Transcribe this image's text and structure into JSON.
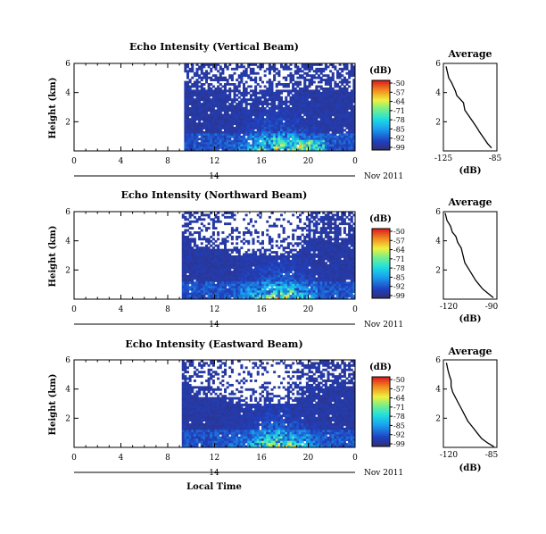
{
  "chart_data": [
    {
      "type": "heatmap",
      "title": "Echo Intensity (Vertical Beam)",
      "ylabel": "Height (km)",
      "xlim": [
        0,
        24
      ],
      "ylim": [
        0,
        6
      ],
      "x_ticks": [
        "0",
        "4",
        "8",
        "12",
        "16",
        "20",
        "0"
      ],
      "y_ticks": [
        "2",
        "4",
        "6"
      ],
      "date_day": "14",
      "date_month": "Nov 2011",
      "data_start_hour": 9.4,
      "colorbar": {
        "label": "(dB)",
        "ticks": [
          "-50",
          "-57",
          "-64",
          "-71",
          "-78",
          "-85",
          "-92",
          "-99"
        ],
        "min": -99,
        "max": -50
      },
      "profile": {
        "title": "Average",
        "xlabel": "(dB)",
        "x_ticks": [
          "-125",
          "-85"
        ],
        "xlim": [
          -125,
          -85
        ],
        "y_ticks": [
          "2",
          "4",
          "6"
        ],
        "points": [
          [
            -123,
            5.8
          ],
          [
            -122,
            5.4
          ],
          [
            -121,
            5.0
          ],
          [
            -119,
            4.7
          ],
          [
            -118,
            4.5
          ],
          [
            -116,
            4.1
          ],
          [
            -115,
            3.8
          ],
          [
            -112,
            3.5
          ],
          [
            -110,
            3.3
          ],
          [
            -109,
            2.8
          ],
          [
            -106,
            2.4
          ],
          [
            -103,
            2.0
          ],
          [
            -100,
            1.6
          ],
          [
            -98,
            1.3
          ],
          [
            -95,
            0.9
          ],
          [
            -92,
            0.5
          ],
          [
            -89,
            0.2
          ]
        ]
      }
    },
    {
      "type": "heatmap",
      "title": "Echo Intensity (Northward Beam)",
      "ylabel": "Height (km)",
      "xlim": [
        0,
        24
      ],
      "ylim": [
        0,
        6
      ],
      "x_ticks": [
        "0",
        "4",
        "8",
        "12",
        "16",
        "20",
        "0"
      ],
      "y_ticks": [
        "2",
        "4",
        "6"
      ],
      "date_day": "14",
      "date_month": "Nov 2011",
      "data_start_hour": 9.2,
      "colorbar": {
        "label": "(dB)",
        "ticks": [
          "-50",
          "-57",
          "-64",
          "-71",
          "-78",
          "-85",
          "-92",
          "-99"
        ],
        "min": -99,
        "max": -50
      },
      "profile": {
        "title": "Average",
        "xlabel": "(dB)",
        "x_ticks": [
          "-120",
          "-90"
        ],
        "xlim": [
          -120,
          -90
        ],
        "y_ticks": [
          "2",
          "4",
          "6"
        ],
        "points": [
          [
            -119,
            5.9
          ],
          [
            -118,
            5.4
          ],
          [
            -116,
            5.0
          ],
          [
            -115,
            4.6
          ],
          [
            -113,
            4.3
          ],
          [
            -112,
            3.9
          ],
          [
            -110,
            3.5
          ],
          [
            -109,
            3.0
          ],
          [
            -108,
            2.5
          ],
          [
            -106,
            2.1
          ],
          [
            -104,
            1.7
          ],
          [
            -102,
            1.3
          ],
          [
            -100,
            1.0
          ],
          [
            -98,
            0.7
          ],
          [
            -95,
            0.4
          ],
          [
            -92,
            0.1
          ]
        ]
      }
    },
    {
      "type": "heatmap",
      "title": "Echo Intensity (Eastward Beam)",
      "ylabel": "Height (km)",
      "xlim": [
        0,
        24
      ],
      "ylim": [
        0,
        6
      ],
      "x_ticks": [
        "0",
        "4",
        "8",
        "12",
        "16",
        "20",
        "0"
      ],
      "y_ticks": [
        "2",
        "4",
        "6"
      ],
      "date_day": "14",
      "date_month": "Nov 2011",
      "data_start_hour": 9.2,
      "colorbar": {
        "label": "(dB)",
        "ticks": [
          "-50",
          "-57",
          "-64",
          "-71",
          "-78",
          "-85",
          "-92",
          "-99"
        ],
        "min": -99,
        "max": -50
      },
      "profile": {
        "title": "Average",
        "xlabel": "(dB)",
        "x_ticks": [
          "-120",
          "-85"
        ],
        "xlim": [
          -120,
          -85
        ],
        "y_ticks": [
          "2",
          "4",
          "6"
        ],
        "points": [
          [
            -118,
            5.8
          ],
          [
            -117,
            5.3
          ],
          [
            -116,
            4.9
          ],
          [
            -115,
            4.6
          ],
          [
            -115,
            4.2
          ],
          [
            -114,
            3.8
          ],
          [
            -112,
            3.4
          ],
          [
            -110,
            3.0
          ],
          [
            -108,
            2.6
          ],
          [
            -106,
            2.2
          ],
          [
            -104,
            1.8
          ],
          [
            -101,
            1.4
          ],
          [
            -98,
            1.0
          ],
          [
            -95,
            0.6
          ],
          [
            -91,
            0.3
          ],
          [
            -87,
            0.05
          ]
        ]
      }
    }
  ],
  "xlabel": "Local Time"
}
